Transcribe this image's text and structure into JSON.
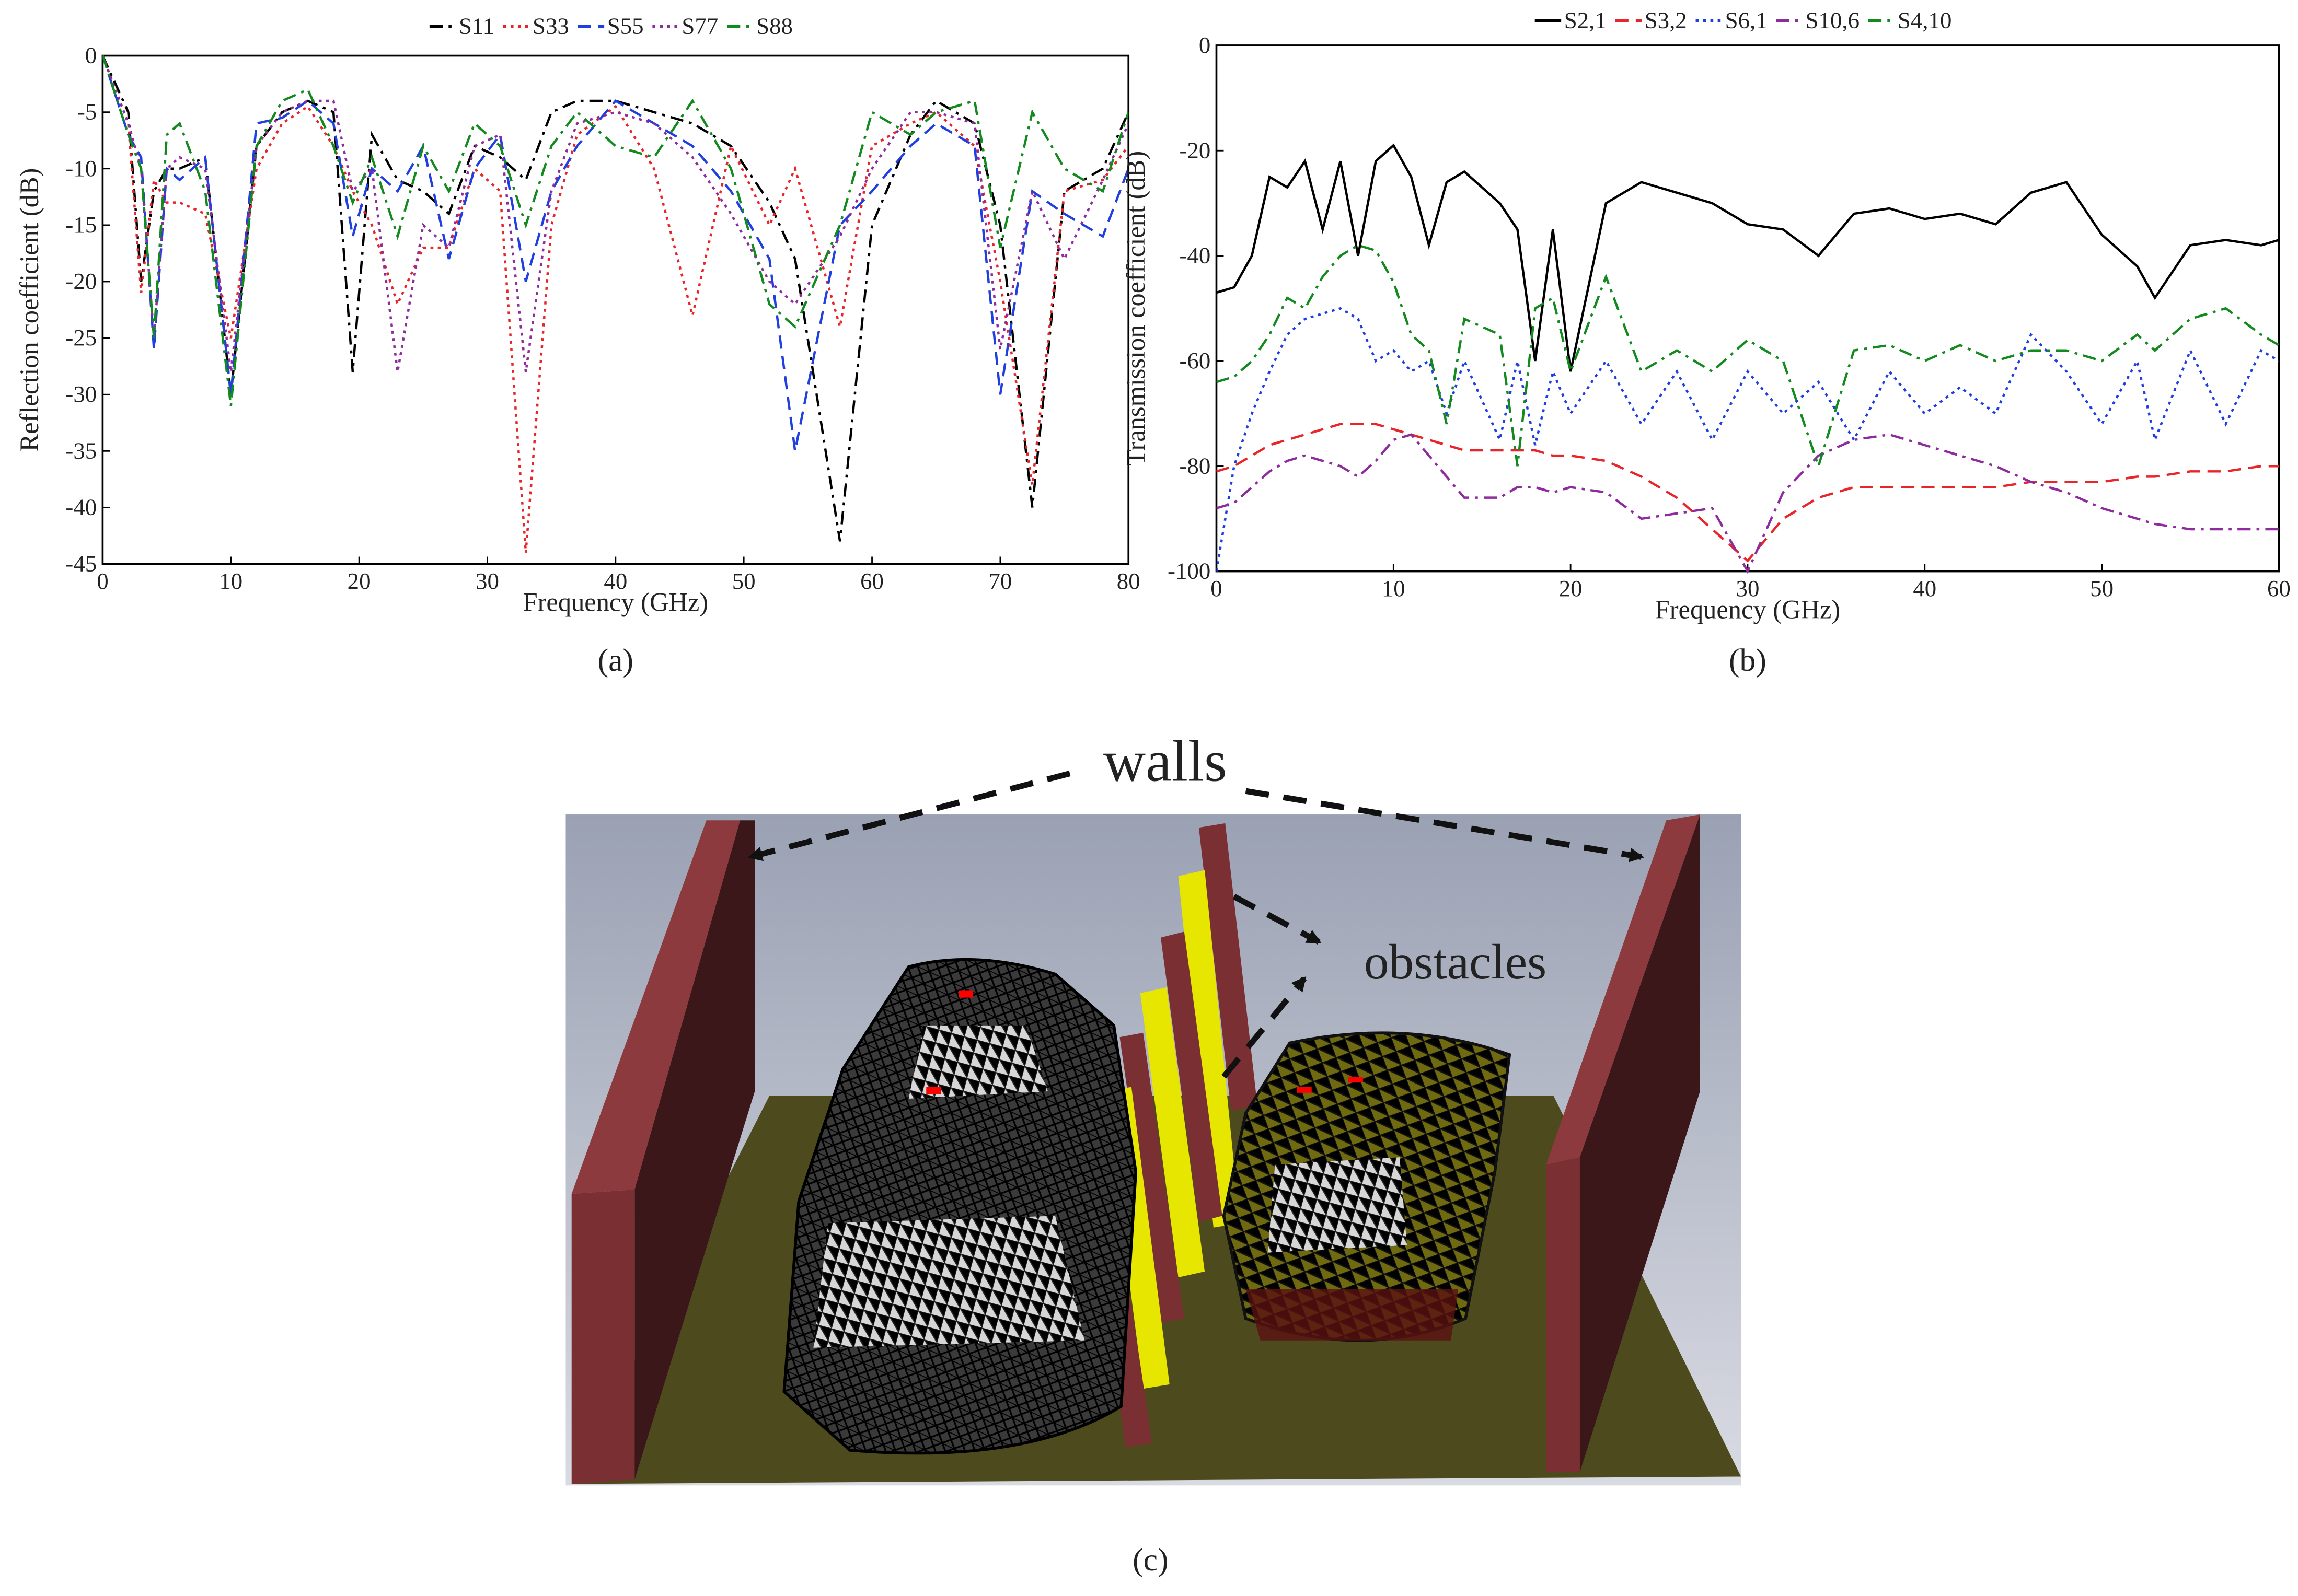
{
  "chart_data": [
    {
      "type": "line",
      "caption": "(a)",
      "x_label": "Frequency (GHz)",
      "y_label": "Reflection coefficient (dB)",
      "xlim": [
        0,
        80
      ],
      "xticks": [
        0,
        10,
        20,
        30,
        40,
        50,
        60,
        70,
        80
      ],
      "ylim": [
        -45,
        0
      ],
      "yticks": [
        0,
        -5,
        -10,
        -15,
        -20,
        -25,
        -30,
        -35,
        -40,
        -45
      ],
      "legend": "top",
      "x": [
        0,
        2,
        3,
        4,
        5,
        6,
        8,
        10,
        12,
        14,
        16,
        18,
        19.5,
        21,
        23,
        25,
        27,
        29,
        31,
        33,
        35,
        37,
        40,
        43,
        46,
        49,
        52,
        54,
        57.5,
        60,
        63,
        65,
        68,
        70,
        72.5,
        75,
        78,
        80
      ],
      "series": [
        {
          "name": "S11",
          "color": "#000000",
          "dash": "dashdot",
          "values": [
            0,
            -5,
            -20,
            -12,
            -10,
            -10,
            -9,
            -30,
            -8,
            -5,
            -4,
            -5,
            -28,
            -7,
            -11,
            -12,
            -14,
            -8,
            -9,
            -11,
            -5,
            -4,
            -4,
            -5,
            -6,
            -8,
            -13,
            -18,
            -43,
            -15,
            -7,
            -4,
            -6,
            -15,
            -40,
            -12,
            -10,
            -5
          ]
        },
        {
          "name": "S33",
          "color": "#e8262a",
          "dash": "dot",
          "values": [
            0,
            -6,
            -21,
            -11,
            -13,
            -13,
            -14,
            -25,
            -10,
            -6,
            -4.5,
            -8,
            -12,
            -15,
            -22,
            -17,
            -17,
            -10,
            -12,
            -44,
            -15,
            -7,
            -4.5,
            -10,
            -23,
            -8,
            -15,
            -10,
            -24,
            -8,
            -6,
            -5,
            -8,
            -20,
            -38,
            -12,
            -11,
            -8
          ]
        },
        {
          "name": "S55",
          "color": "#1f3fe0",
          "dash": "dash",
          "values": [
            0,
            -7,
            -9,
            -26,
            -10,
            -11,
            -9,
            -30,
            -6,
            -5.5,
            -4,
            -6,
            -16,
            -10,
            -12,
            -8,
            -18,
            -10,
            -7,
            -20,
            -12,
            -8,
            -4,
            -6,
            -8,
            -12,
            -18,
            -35,
            -15,
            -12,
            -8,
            -6,
            -8,
            -30,
            -12,
            -14,
            -16,
            -10
          ]
        },
        {
          "name": "S77",
          "color": "#8e2c9e",
          "dash": "dot",
          "values": [
            0,
            -6,
            -10,
            -25,
            -10,
            -9,
            -10,
            -28,
            -8,
            -5,
            -4,
            -4,
            -12,
            -10,
            -28,
            -15,
            -17,
            -8,
            -7,
            -28,
            -12,
            -6,
            -5,
            -6,
            -9,
            -14,
            -20,
            -22,
            -16,
            -10,
            -5,
            -5,
            -6,
            -26,
            -12,
            -18,
            -11,
            -6
          ]
        },
        {
          "name": "S88",
          "color": "#138a1e",
          "dash": "dashdot",
          "values": [
            0,
            -7,
            -10,
            -25,
            -7,
            -6,
            -12,
            -31,
            -8,
            -4,
            -3,
            -8,
            -13,
            -9,
            -16,
            -8,
            -12,
            -6,
            -8,
            -15,
            -8,
            -5,
            -8,
            -9,
            -4,
            -10,
            -22,
            -24,
            -15,
            -5,
            -7,
            -5,
            -4,
            -17,
            -5,
            -10,
            -12,
            -5
          ]
        }
      ]
    },
    {
      "type": "line",
      "caption": "(b)",
      "x_label": "Frequency (GHz)",
      "y_label": "Transmission coefficient (dB)",
      "xlim": [
        0,
        60
      ],
      "xticks": [
        0,
        10,
        20,
        30,
        40,
        50,
        60
      ],
      "ylim": [
        -100,
        0
      ],
      "yticks": [
        0,
        -20,
        -40,
        -60,
        -80,
        -100
      ],
      "legend": "top",
      "x": [
        0,
        1,
        2,
        3,
        4,
        5,
        6,
        7,
        8,
        9,
        10,
        11,
        12,
        13,
        14,
        16,
        17,
        18,
        19,
        20,
        22,
        24,
        26,
        28,
        30,
        32,
        34,
        36,
        38,
        40,
        42,
        44,
        46,
        48,
        50,
        52,
        53,
        55,
        57,
        59,
        60
      ],
      "series": [
        {
          "name": "S2,1",
          "color": "#000000",
          "dash": "solid",
          "values": [
            -47,
            -46,
            -40,
            -25,
            -27,
            -22,
            -35,
            -22,
            -40,
            -22,
            -19,
            -25,
            -38,
            -26,
            -24,
            -30,
            -35,
            -60,
            -35,
            -62,
            -30,
            -26,
            -28,
            -30,
            -34,
            -35,
            -40,
            -32,
            -31,
            -33,
            -32,
            -34,
            -28,
            -26,
            -36,
            -42,
            -48,
            -38,
            -37,
            -38,
            -37
          ]
        },
        {
          "name": "S3,2",
          "color": "#e8262a",
          "dash": "dash",
          "values": [
            -81,
            -80,
            -78,
            -76,
            -75,
            -74,
            -73,
            -72,
            -72,
            -72,
            -73,
            -74,
            -75,
            -76,
            -77,
            -77,
            -77,
            -77,
            -78,
            -78,
            -79,
            -82,
            -86,
            -92,
            -98,
            -90,
            -86,
            -84,
            -84,
            -84,
            -84,
            -84,
            -83,
            -83,
            -83,
            -82,
            -82,
            -81,
            -81,
            -80,
            -80
          ]
        },
        {
          "name": "S6,1",
          "color": "#1f3fe0",
          "dash": "dot",
          "values": [
            -100,
            -80,
            -70,
            -62,
            -55,
            -52,
            -51,
            -50,
            -52,
            -60,
            -58,
            -62,
            -60,
            -70,
            -60,
            -75,
            -60,
            -76,
            -62,
            -70,
            -60,
            -72,
            -62,
            -75,
            -62,
            -70,
            -64,
            -75,
            -62,
            -70,
            -65,
            -70,
            -55,
            -62,
            -72,
            -60,
            -75,
            -58,
            -72,
            -58,
            -60
          ]
        },
        {
          "name": "S10,6",
          "color": "#8e2c9e",
          "dash": "dashdot",
          "values": [
            -88,
            -87,
            -84,
            -81,
            -79,
            -78,
            -79,
            -80,
            -82,
            -79,
            -75,
            -74,
            -78,
            -82,
            -86,
            -86,
            -84,
            -84,
            -85,
            -84,
            -85,
            -90,
            -89,
            -88,
            -100,
            -85,
            -78,
            -75,
            -74,
            -76,
            -78,
            -80,
            -83,
            -85,
            -88,
            -90,
            -91,
            -92,
            -92,
            -92,
            -92
          ]
        },
        {
          "name": "S4,10",
          "color": "#138a1e",
          "dash": "dashdot",
          "values": [
            -64,
            -63,
            -60,
            -55,
            -48,
            -50,
            -44,
            -40,
            -38,
            -39,
            -45,
            -55,
            -58,
            -72,
            -52,
            -55,
            -80,
            -50,
            -48,
            -62,
            -44,
            -62,
            -58,
            -62,
            -56,
            -60,
            -80,
            -58,
            -57,
            -60,
            -57,
            -60,
            -58,
            -58,
            -60,
            -55,
            -58,
            -52,
            -50,
            -55,
            -57
          ]
        }
      ]
    }
  ],
  "panel_c": {
    "walls_label": "walls",
    "obstacles_label": "obstacles",
    "caption": "(c)"
  }
}
